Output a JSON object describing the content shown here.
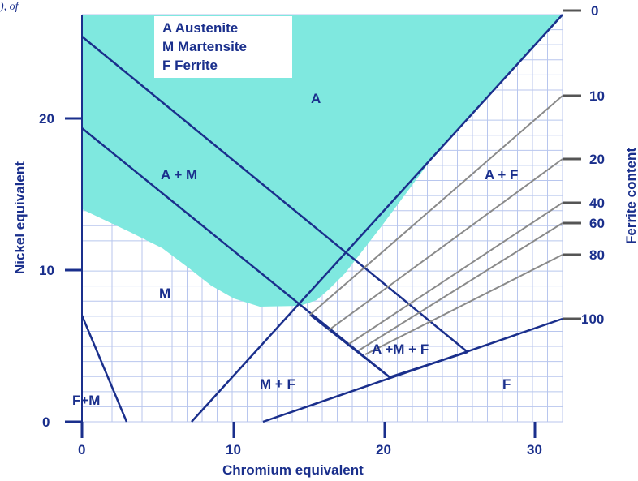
{
  "corner_fragment": "), of",
  "legend": {
    "austenite": "A Austenite",
    "martensite": "M Martensite",
    "ferrite": "F Ferrite"
  },
  "axes": {
    "x_title": "Chromium equivalent",
    "y_title": "Nickel equivalent",
    "right_title": "Ferrite content",
    "x_ticks": [
      "0",
      "10",
      "20",
      "30"
    ],
    "y_ticks": [
      "0",
      "10",
      "20"
    ],
    "ferrite_ticks": [
      "0",
      "10",
      "20",
      "40",
      "60",
      "80",
      "100"
    ]
  },
  "regions": {
    "a": "A",
    "a_m": "A + M",
    "a_f": "A + F",
    "m": "M",
    "m_f": "M + F",
    "f_m": "F+M",
    "a_m_f": "A +M + F",
    "f": "F"
  },
  "colors": {
    "austenite_fill": "#7fe8df",
    "grid": "#b8c6ee",
    "line": "#1a2f8c",
    "ferrite_lines": "#8a8a8a"
  }
}
